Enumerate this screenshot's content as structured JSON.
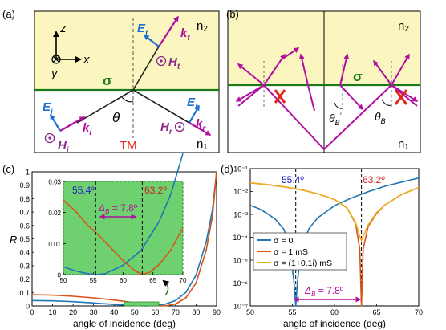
{
  "panel_labels": {
    "a": "(a)",
    "b": "(b)",
    "c": "(c)",
    "d": "(d)"
  },
  "colors": {
    "upper_medium": "#fbf6c0",
    "interface": "#1a7a1a",
    "ray": "#222222",
    "field_E": "#1f6fd0",
    "field_H": "#8a2a8a",
    "wavevector": "#b0109f",
    "tm_label": "#e0301e",
    "inset_bg": "#6fd06f",
    "series_blue": "#1f77b4",
    "series_red": "#d95319",
    "series_orange": "#edb120",
    "annot_blue": "#2020c0",
    "annot_red": "#c81e1e",
    "annot_magenta": "#b0109f"
  },
  "panel_a": {
    "n2": "n₂",
    "n1": "n₁",
    "sigma": "σ",
    "theta": "θ",
    "tm": "TM",
    "axes": {
      "z": "z",
      "x": "x",
      "y": "y"
    },
    "labels": {
      "Et": "E",
      "Et_sub": "t",
      "kt": "k",
      "kt_sub": "t",
      "Ht": "H",
      "Ht_sub": "t",
      "Ei": "E",
      "Ei_sub": "i",
      "ki": "k",
      "ki_sub": "i",
      "Hi": "H",
      "Hi_sub": "i",
      "Er": "E",
      "Er_sub": "r",
      "kr": "k",
      "kr_sub": "r",
      "Hr": "H",
      "Hr_sub": "r"
    }
  },
  "panel_b": {
    "n2": "n₂",
    "n1": "n₁",
    "sigma": "σ",
    "thetaB_prime": "θ",
    "thetaB_prime_sub": "B",
    "thetaB_prime_sup": "′",
    "thetaB": "θ",
    "thetaB_sub": "B"
  },
  "panel_c": {
    "ylabel": "R",
    "xlabel": "angle of incidence (deg)",
    "inset": {
      "annot_left": "55.4º",
      "annot_right": "63.2º",
      "delta": "Δ",
      "delta_sub": "B",
      "delta_value": " = 7.8º"
    }
  },
  "panel_d": {
    "xlabel": "angle of incidence (deg)",
    "annot_left": "55.4º",
    "annot_right": "63.2º",
    "delta": "Δ",
    "delta_sub": "B",
    "delta_value": " = 7.8º"
  },
  "chart_data": [
    {
      "type": "line",
      "panel": "c",
      "ylabel": "R",
      "xlabel": "angle of incidence (deg)",
      "xlim": [
        0,
        90
      ],
      "ylim": [
        0,
        1
      ],
      "xticks": [
        "0",
        "10",
        "20",
        "30",
        "40",
        "50",
        "60",
        "70",
        "80",
        "90"
      ],
      "yticks": [
        "0",
        "0.1",
        "0.2",
        "0.3",
        "0.4",
        "0.5",
        "0.6",
        "0.7",
        "0.8",
        "0.9",
        "1"
      ],
      "series": [
        {
          "x": [
            0,
            10,
            20,
            30,
            40,
            50,
            55.4,
            60,
            65,
            70,
            75,
            80,
            85,
            88,
            90
          ],
          "values": [
            0.04,
            0.038,
            0.032,
            0.022,
            0.011,
            0.0025,
            0.0,
            0.003,
            0.013,
            0.04,
            0.1,
            0.23,
            0.48,
            0.72,
            1.0
          ]
        },
        {
          "x": [
            0,
            10,
            20,
            30,
            40,
            50,
            55,
            60,
            63.2,
            66,
            70,
            75,
            80,
            85,
            88,
            90
          ],
          "values": [
            0.083,
            0.08,
            0.072,
            0.06,
            0.044,
            0.024,
            0.012,
            0.004,
            0.0,
            0.003,
            0.015,
            0.06,
            0.17,
            0.42,
            0.67,
            1.0
          ]
        }
      ]
    },
    {
      "type": "line",
      "panel": "c-inset",
      "xlim": [
        50,
        70
      ],
      "ylim": [
        0,
        0.03
      ],
      "xticks": [
        "50",
        "55",
        "60",
        "65",
        "70"
      ],
      "yticks": [
        "0",
        "0.01",
        "0.02",
        "0.03"
      ],
      "series": [
        {
          "x": [
            50,
            52,
            54,
            55.4,
            57,
            60,
            63,
            66,
            68,
            70
          ],
          "values": [
            0.0025,
            0.0012,
            0.0003,
            0.0,
            0.0003,
            0.003,
            0.0078,
            0.017,
            0.026,
            0.039
          ]
        },
        {
          "x": [
            50,
            52,
            54,
            56,
            58,
            60,
            62,
            63.2,
            64.5,
            66,
            68,
            70
          ],
          "values": [
            0.024,
            0.0205,
            0.016,
            0.0125,
            0.0085,
            0.0045,
            0.0012,
            0.0,
            0.0008,
            0.0032,
            0.008,
            0.015
          ]
        }
      ]
    },
    {
      "type": "line",
      "panel": "d",
      "scale": "log",
      "xlabel": "angle of incidence (deg)",
      "xlim": [
        50,
        70
      ],
      "ylim": [
        1e-07,
        0.1
      ],
      "xticks": [
        "50",
        "55",
        "60",
        "65",
        "70"
      ],
      "yticks": [
        "10⁻⁷",
        "10⁻⁶",
        "10⁻⁵",
        "10⁻⁴",
        "10⁻³",
        "10⁻²",
        "10⁻¹"
      ],
      "legend": "lower-left",
      "series": [
        {
          "name": "σ = 0",
          "x": [
            50,
            51,
            52,
            53,
            54,
            54.8,
            55.2,
            55.4,
            55.6,
            56,
            57,
            58,
            60,
            62,
            64,
            66,
            68,
            70
          ],
          "values": [
            0.0025,
            0.0018,
            0.0011,
            0.0006,
            0.00022,
            2e-05,
            1e-06,
            1e-07,
            1e-06,
            3e-05,
            0.00025,
            0.0007,
            0.0024,
            0.0052,
            0.0098,
            0.017,
            0.026,
            0.039
          ]
        },
        {
          "name": "σ = 1 mS",
          "x": [
            50,
            52,
            54,
            56,
            58,
            60,
            61.5,
            62.5,
            63,
            63.2,
            63.4,
            64,
            65,
            66,
            68,
            70
          ],
          "values": [
            0.024,
            0.02,
            0.016,
            0.012,
            0.008,
            0.0045,
            0.0019,
            0.0004,
            3e-05,
            1e-07,
            3e-05,
            0.0003,
            0.0011,
            0.0026,
            0.0075,
            0.015
          ]
        },
        {
          "name": "σ = (1+0.1i) mS",
          "x": [
            50,
            52,
            54,
            56,
            58,
            60,
            61.5,
            62.5,
            63,
            63.2,
            63.4,
            64,
            65,
            66,
            68,
            70
          ],
          "values": [
            0.024,
            0.02,
            0.016,
            0.012,
            0.008,
            0.0045,
            0.0019,
            0.00045,
            0.00011,
            7e-05,
            0.00011,
            0.00035,
            0.0012,
            0.0026,
            0.0075,
            0.015
          ]
        }
      ]
    }
  ]
}
